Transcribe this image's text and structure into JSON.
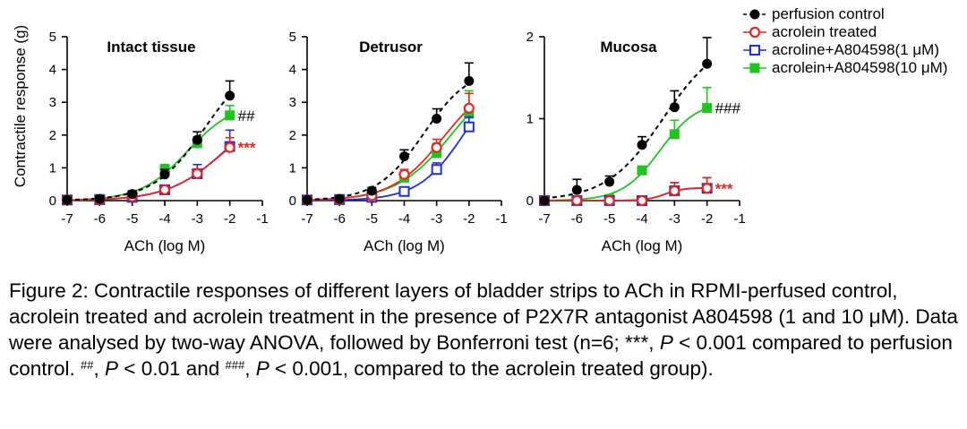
{
  "legend": [
    {
      "label": "perfusion control",
      "color": "#000000",
      "marker": "circle-filled",
      "line": "dashed"
    },
    {
      "label": "acrolein treated",
      "color": "#e8241c",
      "marker": "circle-open",
      "line": "solid"
    },
    {
      "label": "acroline+A804598(1 μM)",
      "color": "#1f2fd6",
      "marker": "square-open",
      "line": "solid"
    },
    {
      "label": "acrolein+A804598(10 μM)",
      "color": "#1fc41f",
      "marker": "square-filled",
      "line": "solid"
    }
  ],
  "caption": {
    "p1": "Figure 2: Contractile responses of different layers of bladder strips to ACh in RPMI-perfused control, acrolein treated and acrolein treatment in the presence of P2X7R antagonist A804598 (1 and 10 μM). Data were analysed by two-way ANOVA, followed by Bonferroni test (n=6; ***, ",
    "p_italic_1": "P",
    "p2": " < 0.001 compared to perfusion control. ",
    "sup1": "##",
    "p3": ", ",
    "p_italic_2": "P",
    "p4": " < 0.01 and ",
    "sup2": "###",
    "p5": ", ",
    "p_italic_3": "P",
    "p6": " < 0.001, compared to the acrolein treated group)."
  },
  "chart_data": [
    {
      "type": "line",
      "title": "Intact tissue",
      "xlabel": "ACh (log M)",
      "ylabel": "Contractile response (g)",
      "xlim": [
        -7,
        -1
      ],
      "ylim": [
        0,
        5
      ],
      "xticks": [
        "-7",
        "-6",
        "-5",
        "-4",
        "-3",
        "-2",
        "-1"
      ],
      "yticks": [
        "0",
        "1",
        "2",
        "3",
        "4",
        "5"
      ],
      "x": [
        -7,
        -6,
        -5,
        -4,
        -3,
        -2
      ],
      "series": [
        {
          "name": "perfusion control",
          "values": [
            0.02,
            0.05,
            0.2,
            0.8,
            1.85,
            3.2
          ],
          "err": [
            0.05,
            0.08,
            0.1,
            0.15,
            0.25,
            0.45
          ]
        },
        {
          "name": "acrolein treated",
          "values": [
            0.02,
            0.03,
            0.12,
            0.33,
            0.82,
            1.62
          ],
          "err": [
            0.05,
            0.05,
            0.08,
            0.1,
            0.15,
            0.3
          ]
        },
        {
          "name": "acroline+A804598(1 μM)",
          "values": [
            0.02,
            0.03,
            0.1,
            0.33,
            0.82,
            1.65
          ],
          "err": [
            0.05,
            0.05,
            0.08,
            0.1,
            0.28,
            0.5
          ]
        },
        {
          "name": "acrolein+A804598(10 μM)",
          "values": [
            0.02,
            0.05,
            0.15,
            0.95,
            1.75,
            2.6
          ],
          "err": [
            0.05,
            0.06,
            0.1,
            0.15,
            0.2,
            0.3
          ]
        }
      ],
      "annotations": [
        {
          "text": "##",
          "series": 3,
          "color": "#000000"
        },
        {
          "text": "***",
          "series": 1,
          "color": "#e8241c"
        }
      ]
    },
    {
      "type": "line",
      "title": "Detrusor",
      "xlabel": "ACh (log M)",
      "ylabel": "",
      "xlim": [
        -7,
        -1
      ],
      "ylim": [
        0,
        5
      ],
      "xticks": [
        "-7",
        "-6",
        "-5",
        "-4",
        "-3",
        "-2",
        "-1"
      ],
      "yticks": [
        "0",
        "1",
        "2",
        "3",
        "4",
        "5"
      ],
      "x": [
        -7,
        -6,
        -5,
        -4,
        -3,
        -2
      ],
      "series": [
        {
          "name": "perfusion control",
          "values": [
            0.02,
            0.05,
            0.3,
            1.35,
            2.5,
            3.65
          ],
          "err": [
            0.05,
            0.06,
            0.1,
            0.2,
            0.3,
            0.55
          ]
        },
        {
          "name": "acrolein treated",
          "values": [
            0.02,
            0.03,
            0.15,
            0.8,
            1.62,
            2.82
          ],
          "err": [
            0.05,
            0.05,
            0.08,
            0.15,
            0.25,
            0.45
          ]
        },
        {
          "name": "acroline+A804598(1 μM)",
          "values": [
            0.02,
            0.03,
            0.1,
            0.28,
            0.95,
            2.25
          ],
          "err": [
            0.05,
            0.05,
            0.06,
            0.1,
            0.2,
            0.3
          ]
        },
        {
          "name": "acrolein+A804598(10 μM)",
          "values": [
            0.02,
            0.05,
            0.2,
            0.7,
            1.45,
            2.65
          ],
          "err": [
            0.05,
            0.06,
            0.1,
            0.15,
            0.3,
            0.7
          ]
        }
      ],
      "annotations": []
    },
    {
      "type": "line",
      "title": "Mucosa",
      "xlabel": "ACh (log M)",
      "ylabel": "",
      "xlim": [
        -7,
        -1
      ],
      "ylim": [
        0,
        2
      ],
      "xticks": [
        "-7",
        "-6",
        "-5",
        "-4",
        "-3",
        "-2",
        "-1"
      ],
      "yticks": [
        "0",
        "1",
        "2"
      ],
      "x": [
        -7,
        -6,
        -5,
        -4,
        -3,
        -2
      ],
      "series": [
        {
          "name": "perfusion control",
          "values": [
            0.0,
            0.13,
            0.23,
            0.68,
            1.14,
            1.67
          ],
          "err": [
            0.02,
            0.13,
            0.07,
            0.1,
            0.2,
            0.32
          ]
        },
        {
          "name": "acrolein treated",
          "values": [
            0.0,
            0.0,
            0.0,
            0.0,
            0.12,
            0.15
          ],
          "err": [
            0.02,
            0.02,
            0.02,
            0.03,
            0.1,
            0.13
          ]
        },
        {
          "name": "acroline+A804598(1 μM)",
          "values": [
            0.0,
            0.0,
            0.0,
            0.0,
            0.12,
            0.15
          ],
          "err": [
            0.02,
            0.02,
            0.02,
            0.05,
            0.1,
            0.13
          ]
        },
        {
          "name": "acrolein+A804598(10 μM)",
          "values": [
            0.0,
            0.0,
            0.02,
            0.37,
            0.81,
            1.13
          ],
          "err": [
            0.02,
            0.02,
            0.03,
            0.05,
            0.17,
            0.25
          ]
        }
      ],
      "annotations": [
        {
          "text": "###",
          "series": 3,
          "color": "#000000"
        },
        {
          "text": "***",
          "series": 1,
          "color": "#e8241c"
        }
      ]
    }
  ]
}
